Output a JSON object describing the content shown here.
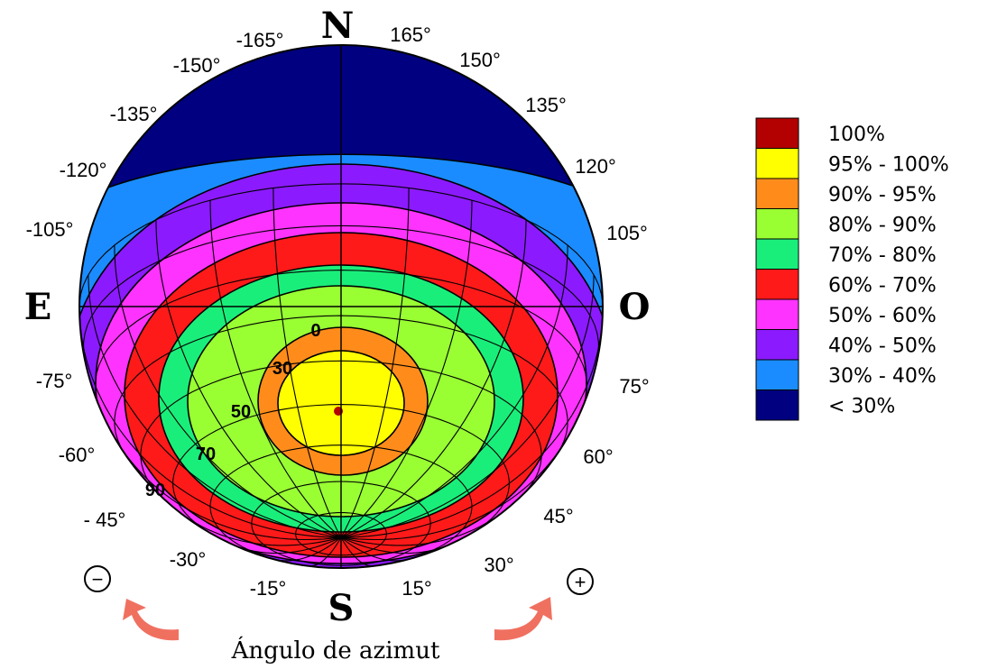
{
  "cardinals": {
    "north": "N",
    "south": "S",
    "east": "E",
    "west": "O"
  },
  "azimuth_labels": [
    {
      "text": "165°",
      "angle": 165
    },
    {
      "text": "150°",
      "angle": 150
    },
    {
      "text": "135°",
      "angle": 135
    },
    {
      "text": "120°",
      "angle": 120
    },
    {
      "text": "105°",
      "angle": 105
    },
    {
      "text": "75°",
      "angle": 75
    },
    {
      "text": "60°",
      "angle": 60
    },
    {
      "text": "45°",
      "angle": 45
    },
    {
      "text": "30°",
      "angle": 30
    },
    {
      "text": "15°",
      "angle": 15
    },
    {
      "text": "-15°",
      "angle": -15
    },
    {
      "text": "-30°",
      "angle": -30
    },
    {
      "text": "- 45°",
      "angle": -45
    },
    {
      "text": "-60°",
      "angle": -60
    },
    {
      "text": "-75°",
      "angle": -75
    },
    {
      "text": "-105°",
      "angle": -105
    },
    {
      "text": "-120°",
      "angle": -120
    },
    {
      "text": "-135°",
      "angle": -135
    },
    {
      "text": "-150°",
      "angle": -150
    },
    {
      "text": "-165°",
      "angle": -165
    }
  ],
  "inclination_labels": [
    "0",
    "30",
    "50",
    "70",
    "90"
  ],
  "legend": [
    {
      "label": "100%",
      "color": "#b30000"
    },
    {
      "label": "95% - 100%",
      "color": "#ffff00"
    },
    {
      "label": "90% - 95%",
      "color": "#ff8c1a"
    },
    {
      "label": "80% - 90%",
      "color": "#99ff33"
    },
    {
      "label": "70% - 80%",
      "color": "#1aee7a"
    },
    {
      "label": "60% - 70%",
      "color": "#ff1a1a"
    },
    {
      "label": "50% - 60%",
      "color": "#ff33ff"
    },
    {
      "label": "40% - 50%",
      "color": "#8c1aff"
    },
    {
      "label": "30% - 40%",
      "color": "#1a8cff"
    },
    {
      "label": "< 30%",
      "color": "#000080"
    }
  ],
  "minus_symbol": "−",
  "plus_symbol": "+",
  "axis_title": "Ángulo de azimut"
}
